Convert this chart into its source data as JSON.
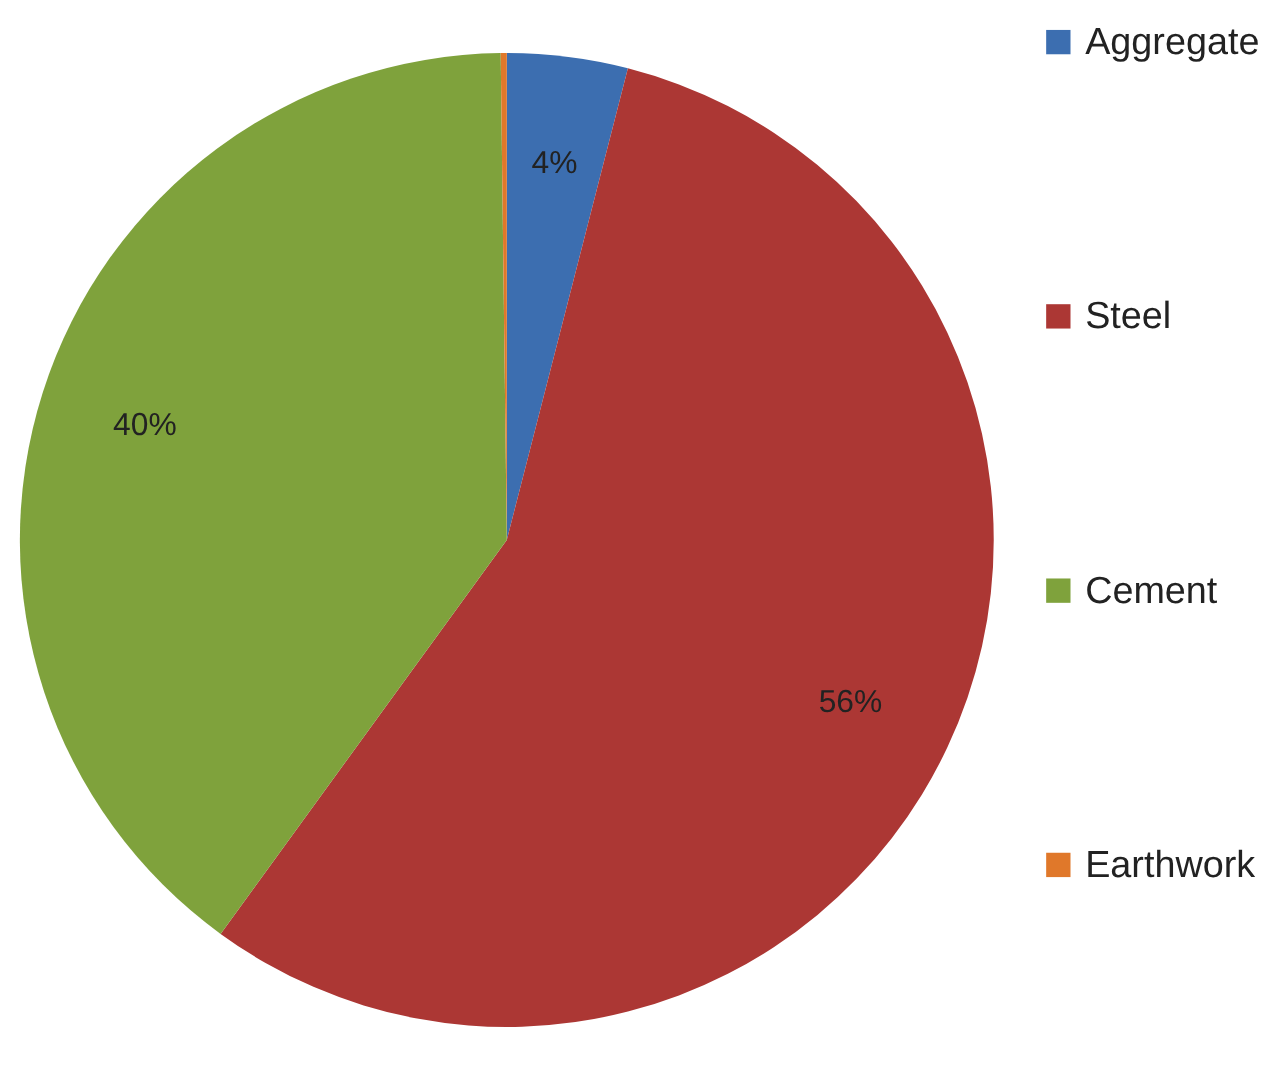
{
  "chart_data": {
    "type": "pie",
    "categories": [
      "Aggregate",
      "Steel",
      "Cement",
      "Earthwork"
    ],
    "values": [
      4,
      56,
      39.8,
      0.2
    ],
    "colors": [
      "#3c6eb0",
      "#ac3734",
      "#7fa23c",
      "#e0782a"
    ],
    "value_labels": [
      "4%",
      "56%",
      "40%",
      null
    ],
    "legend": "right"
  }
}
